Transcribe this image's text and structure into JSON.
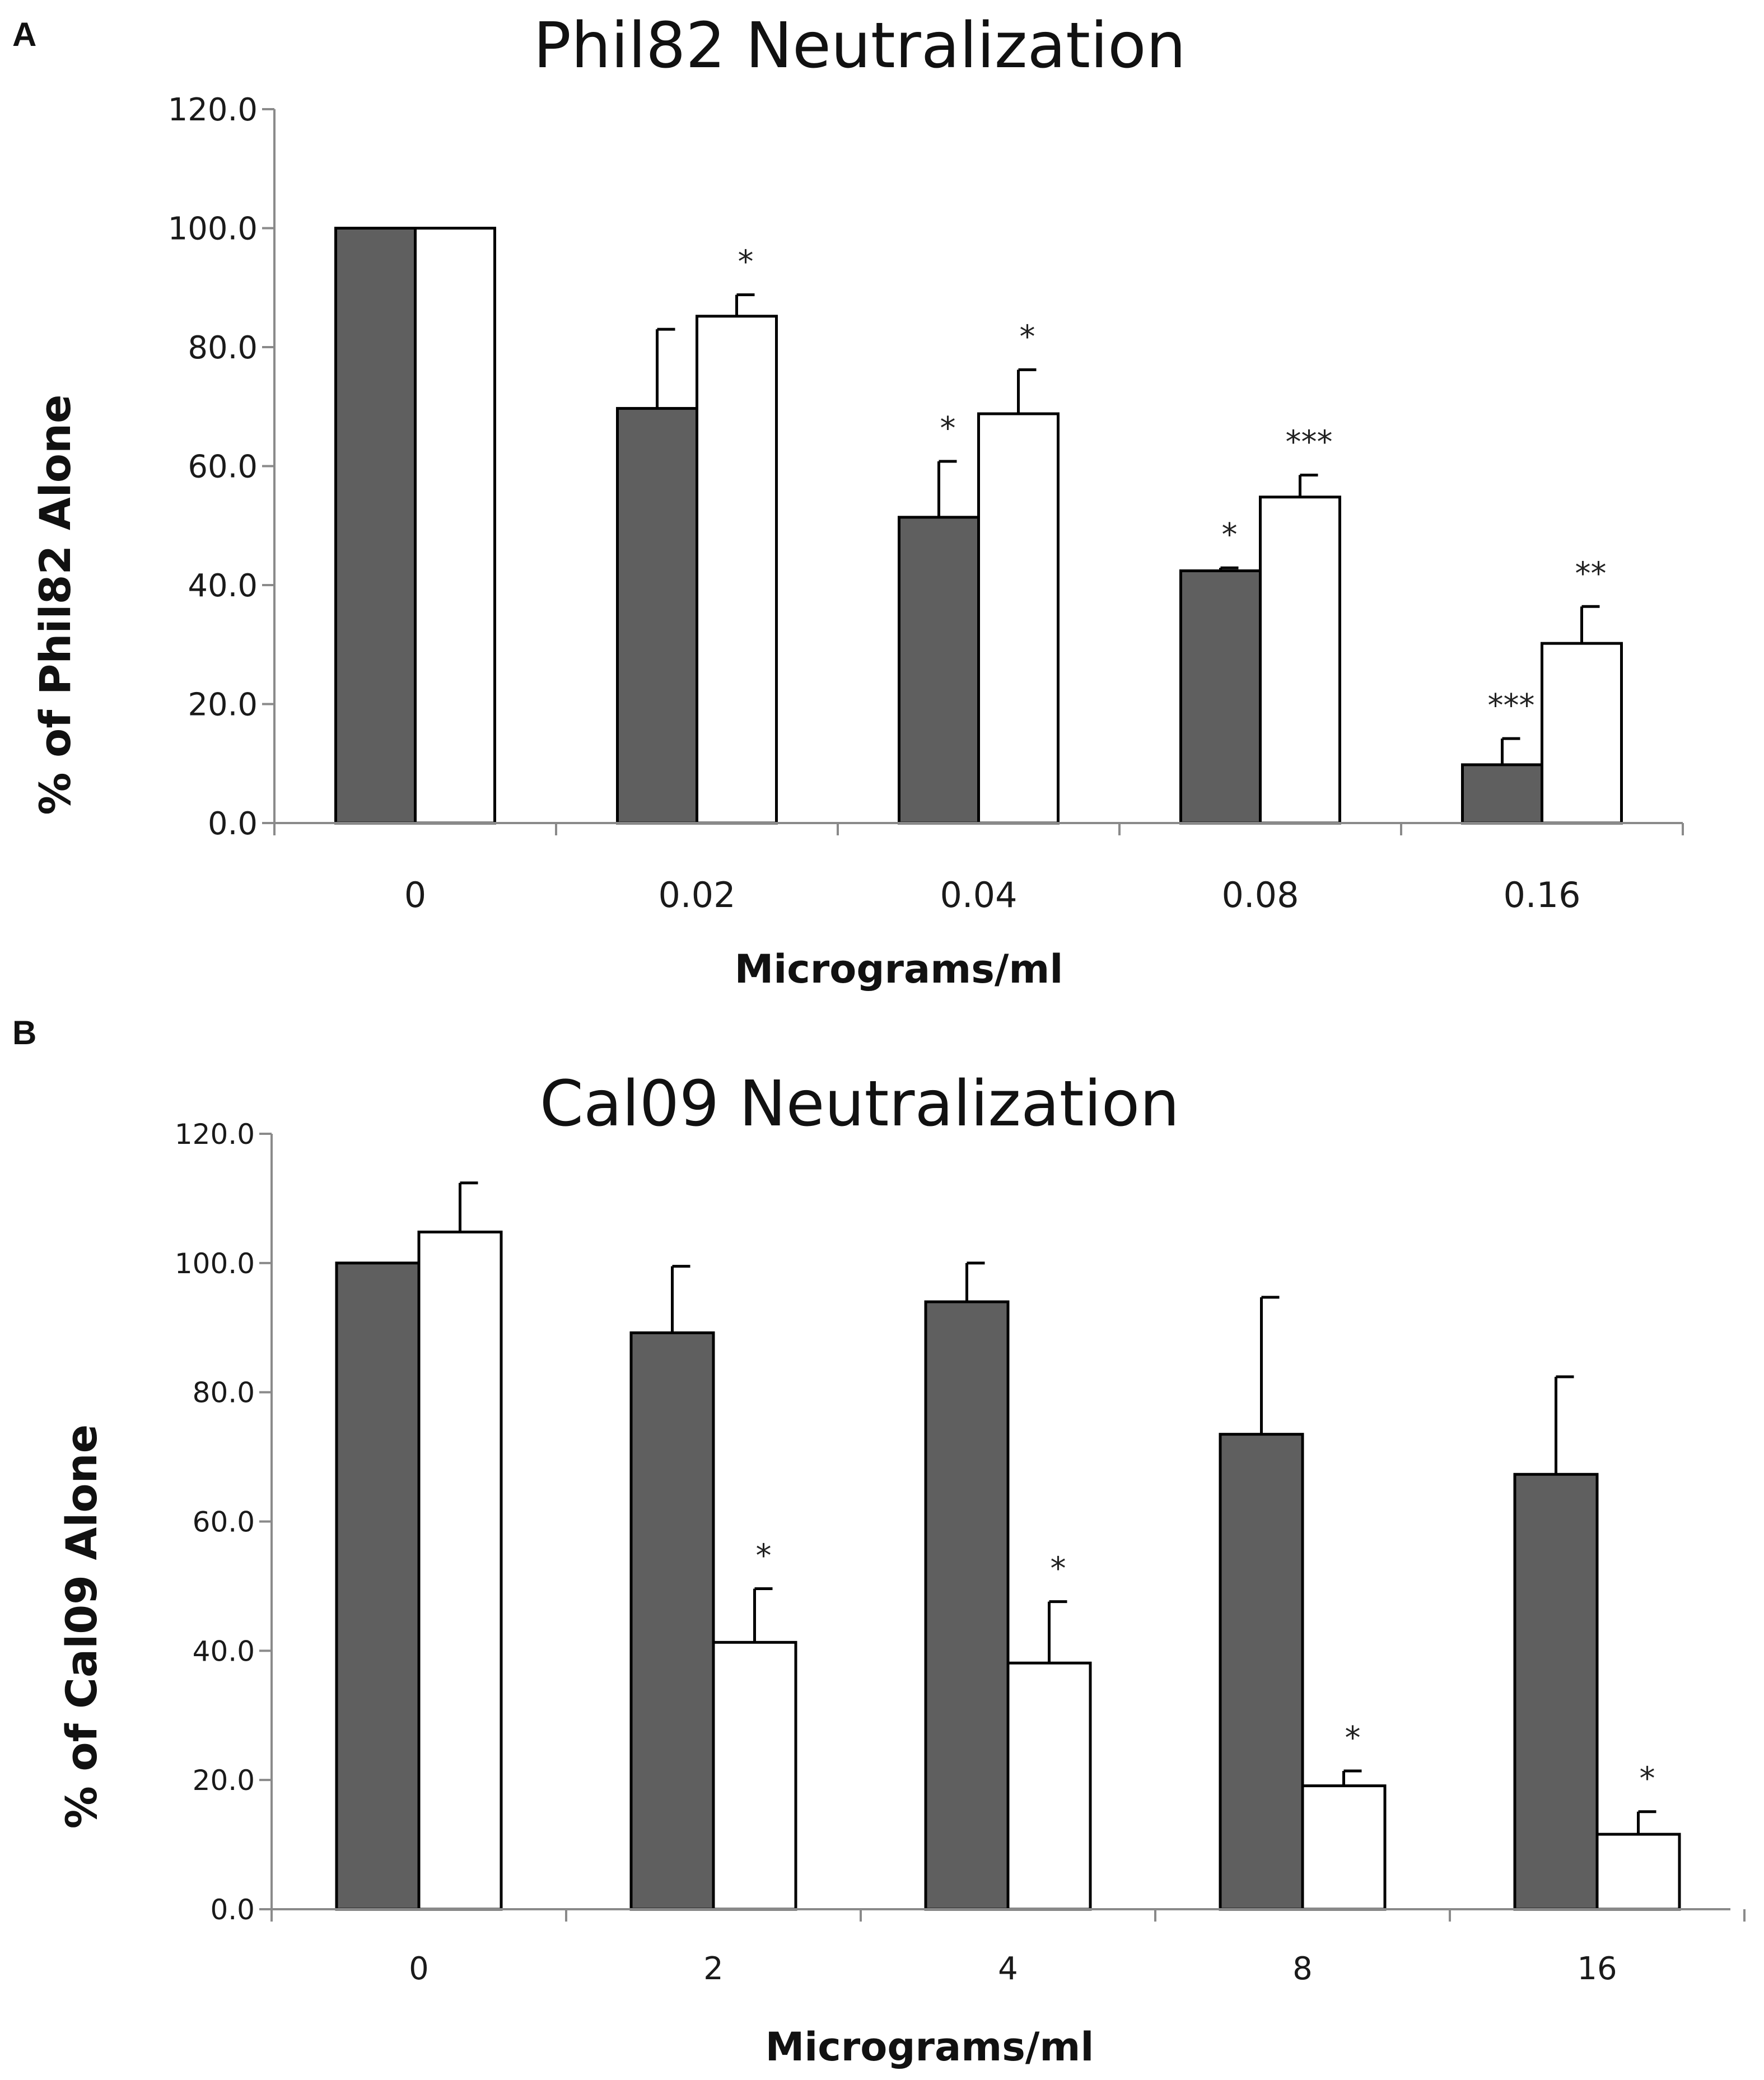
{
  "chart_data": [
    {
      "type": "bar",
      "panel_label": "A",
      "title": "Phil82 Neutralization",
      "xlabel": "Micrograms/ml",
      "ylabel": "% of Phil82 Alone",
      "categories": [
        "0",
        "0.02",
        "0.04",
        "0.08",
        "0.16"
      ],
      "ylim": [
        0,
        120
      ],
      "yticks": [
        "0.0",
        "20.0",
        "40.0",
        "60.0",
        "80.0",
        "100.0",
        "120.0"
      ],
      "grid": false,
      "series": [
        {
          "name": "grey",
          "color": "#5f5f5f",
          "values": [
            100,
            69.7,
            51.4,
            42.4,
            9.8
          ],
          "errors": [
            0,
            13.3,
            9.4,
            0.5,
            4.4
          ],
          "significance": [
            "",
            "",
            "*",
            "*",
            "***"
          ]
        },
        {
          "name": "white",
          "color": "#ffffff",
          "values": [
            100,
            85.2,
            68.8,
            54.8,
            30.2
          ],
          "errors": [
            0,
            3.6,
            7.4,
            3.7,
            6.2
          ],
          "significance": [
            "",
            "*",
            "*",
            "***",
            "**"
          ]
        }
      ]
    },
    {
      "type": "bar",
      "panel_label": "B",
      "title": "Cal09 Neutralization",
      "xlabel": "Micrograms/ml",
      "ylabel": "% of Cal09 Alone",
      "categories": [
        "0",
        "2",
        "4",
        "8",
        "16"
      ],
      "ylim": [
        0,
        120
      ],
      "yticks": [
        "0.0",
        "20.0",
        "40.0",
        "60.0",
        "80.0",
        "100.0",
        "120.0"
      ],
      "grid": false,
      "series": [
        {
          "name": "grey",
          "color": "#5f5f5f",
          "values": [
            100,
            89.2,
            94,
            73.5,
            67.3
          ],
          "errors": [
            0,
            10.3,
            6,
            21.2,
            15.1
          ],
          "significance": [
            "",
            "",
            "",
            "",
            ""
          ]
        },
        {
          "name": "white",
          "color": "#ffffff",
          "values": [
            104.8,
            41.3,
            38.1,
            19.1,
            11.6
          ],
          "errors": [
            7.6,
            8.3,
            9.5,
            2.3,
            3.5
          ],
          "significance": [
            "",
            "*",
            "*",
            "*",
            "*"
          ]
        }
      ]
    }
  ]
}
